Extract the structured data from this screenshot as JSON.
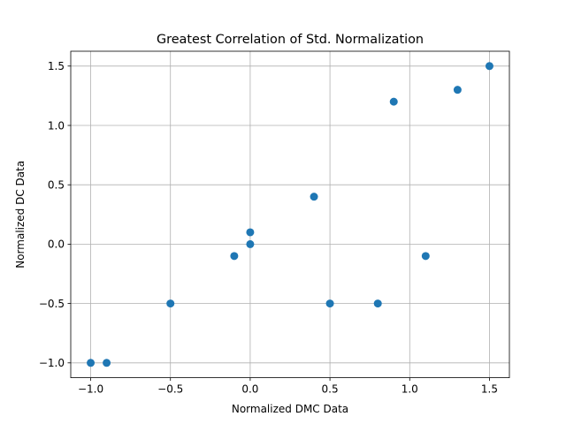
{
  "chart_data": {
    "type": "scatter",
    "title": "Greatest Correlation of Std. Normalization",
    "xlabel": "Normalized DMC Data",
    "ylabel": "Normalized DC Data",
    "xlim": [
      -1.125,
      1.625
    ],
    "ylim": [
      -1.125,
      1.625
    ],
    "xticks": [
      -1.0,
      -0.5,
      0.0,
      0.5,
      1.0,
      1.5
    ],
    "xtick_labels": [
      "−1.0",
      "−0.5",
      "0.0",
      "0.5",
      "1.0",
      "1.5"
    ],
    "yticks": [
      -1.0,
      -0.5,
      0.0,
      0.5,
      1.0,
      1.5
    ],
    "ytick_labels": [
      "−1.0",
      "−0.5",
      "0.0",
      "0.5",
      "1.0",
      "1.5"
    ],
    "grid": true,
    "series": [
      {
        "color": "#1f77b4",
        "points": [
          {
            "x": -1.0,
            "y": -1.0
          },
          {
            "x": -0.9,
            "y": -1.0
          },
          {
            "x": -0.5,
            "y": -0.5
          },
          {
            "x": -0.1,
            "y": -0.1
          },
          {
            "x": 0.0,
            "y": 0.0
          },
          {
            "x": 0.0,
            "y": 0.1
          },
          {
            "x": 0.4,
            "y": 0.4
          },
          {
            "x": 0.5,
            "y": -0.5
          },
          {
            "x": 0.8,
            "y": -0.5
          },
          {
            "x": 0.9,
            "y": 1.2
          },
          {
            "x": 1.1,
            "y": -0.1
          },
          {
            "x": 1.3,
            "y": 1.3
          },
          {
            "x": 1.5,
            "y": 1.5
          }
        ]
      }
    ]
  }
}
